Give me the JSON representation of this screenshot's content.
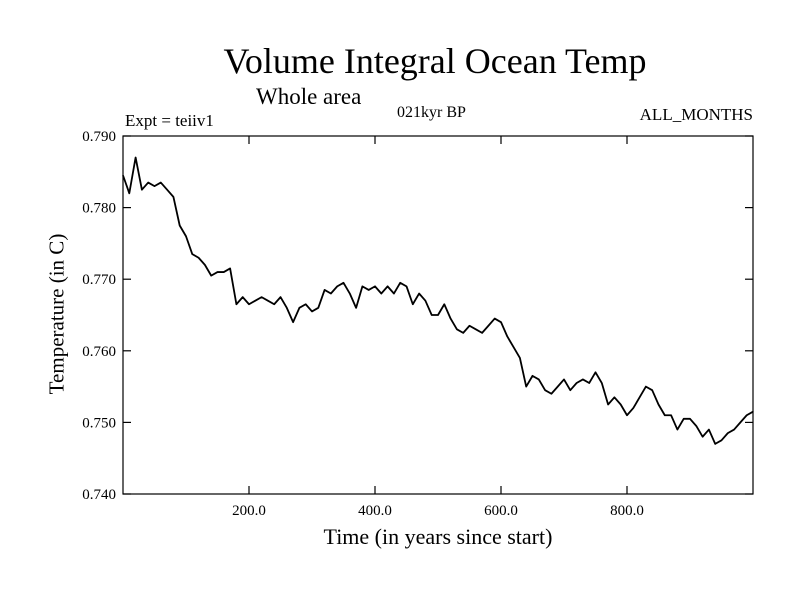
{
  "chart_data": {
    "type": "line",
    "title": "Volume Integral Ocean Temp",
    "subtitle": "Whole area",
    "experiment_label": "Expt = teiiv1",
    "period_label": "021kyr BP",
    "months_label": "ALL_MONTHS",
    "xlabel": "Time (in years since start)",
    "ylabel": "Temperature (in C)",
    "xlim": [
      0,
      1000
    ],
    "ylim": [
      0.74,
      0.79
    ],
    "x_ticks": [
      200,
      400,
      600,
      800
    ],
    "x_tick_labels": [
      "200.0",
      "400.0",
      "600.0",
      "800.0"
    ],
    "y_ticks": [
      0.74,
      0.75,
      0.76,
      0.77,
      0.78,
      0.79
    ],
    "y_tick_labels": [
      "0.740",
      "0.750",
      "0.760",
      "0.770",
      "0.780",
      "0.790"
    ],
    "grid": false,
    "series": [
      {
        "color": "#000000",
        "x": [
          0,
          10,
          20,
          30,
          40,
          50,
          60,
          70,
          80,
          90,
          100,
          110,
          120,
          130,
          140,
          150,
          160,
          170,
          180,
          190,
          200,
          210,
          220,
          230,
          240,
          250,
          260,
          270,
          280,
          290,
          300,
          310,
          320,
          330,
          340,
          350,
          360,
          370,
          380,
          390,
          400,
          410,
          420,
          430,
          440,
          450,
          460,
          470,
          480,
          490,
          500,
          510,
          520,
          530,
          540,
          550,
          560,
          570,
          580,
          590,
          600,
          610,
          620,
          630,
          640,
          650,
          660,
          670,
          680,
          690,
          700,
          710,
          720,
          730,
          740,
          750,
          760,
          770,
          780,
          790,
          800,
          810,
          820,
          830,
          840,
          850,
          860,
          870,
          880,
          890,
          900,
          910,
          920,
          930,
          940,
          950,
          960,
          970,
          980,
          990,
          1000
        ],
        "y": [
          0.7845,
          0.782,
          0.787,
          0.7825,
          0.7835,
          0.783,
          0.7835,
          0.7825,
          0.7815,
          0.7775,
          0.776,
          0.7735,
          0.773,
          0.772,
          0.7705,
          0.771,
          0.771,
          0.7715,
          0.7665,
          0.7675,
          0.7665,
          0.767,
          0.7675,
          0.767,
          0.7665,
          0.7675,
          0.766,
          0.764,
          0.766,
          0.7665,
          0.7655,
          0.766,
          0.7685,
          0.768,
          0.769,
          0.7695,
          0.768,
          0.766,
          0.769,
          0.7685,
          0.769,
          0.768,
          0.769,
          0.768,
          0.7695,
          0.769,
          0.7665,
          0.768,
          0.767,
          0.765,
          0.765,
          0.7665,
          0.7645,
          0.763,
          0.7625,
          0.7635,
          0.763,
          0.7625,
          0.7635,
          0.7645,
          0.764,
          0.762,
          0.7605,
          0.759,
          0.755,
          0.7565,
          0.756,
          0.7545,
          0.754,
          0.755,
          0.756,
          0.7545,
          0.7555,
          0.756,
          0.7555,
          0.757,
          0.7555,
          0.7525,
          0.7535,
          0.7525,
          0.751,
          0.752,
          0.7535,
          0.755,
          0.7545,
          0.7525,
          0.751,
          0.751,
          0.749,
          0.7505,
          0.7505,
          0.7495,
          0.748,
          0.749,
          0.747,
          0.7475,
          0.7485,
          0.749,
          0.75,
          0.751,
          0.7515
        ]
      }
    ]
  }
}
